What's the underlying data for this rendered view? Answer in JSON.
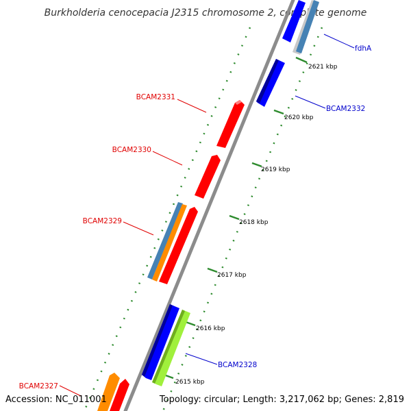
{
  "title": "Burkholderia cenocepacia J2315 chromosome 2, complete genome",
  "footer": {
    "accession": "Accession: NC_011001",
    "summary": "Topology: circular; Length: 3,217,062 bp; Genes: 2,819"
  },
  "ticks": [
    "2621 kbp",
    "2620 kbp",
    "2619 kbp",
    "2618 kbp",
    "2617 kbp",
    "2616 kbp",
    "2615 kbp"
  ],
  "gene_labels": {
    "fdhA": "fdhA",
    "BCAM2332": "BCAM2332",
    "BCAM2331": "BCAM2331",
    "BCAM2330": "BCAM2330",
    "BCAM2329": "BCAM2329",
    "BCAM2328": "BCAM2328",
    "BCAM2327": "BCAM2327"
  },
  "colors": {
    "forward_gene": "#ff0000",
    "reverse_gene": "#0000ff",
    "forward_label": "#e00000",
    "reverse_label": "#0000cc",
    "cds_orange": "#ff8c00",
    "cds_steelblue": "#4682b4",
    "cds_lime": "#a0f03c",
    "backbone": "#8c8c8c",
    "tick_green": "#2e8b2e"
  }
}
